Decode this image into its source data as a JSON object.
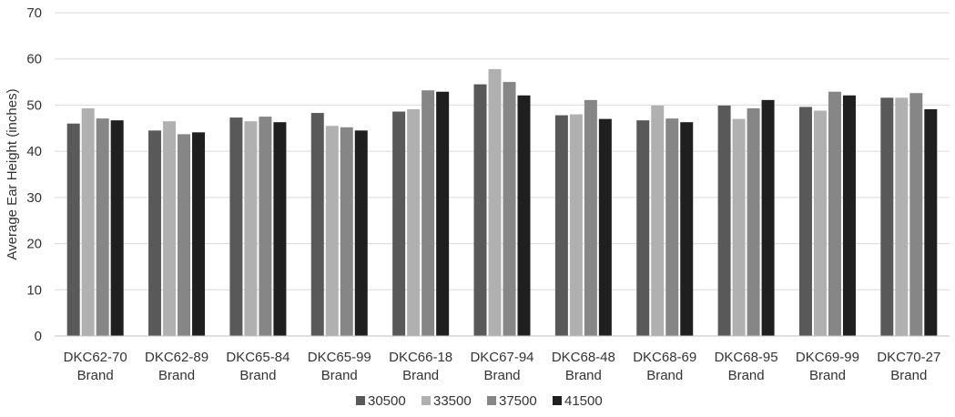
{
  "chart_data": {
    "type": "bar",
    "title": "",
    "xlabel": "",
    "ylabel": "Average Ear Height (inches)",
    "ylim": [
      0,
      70
    ],
    "yticks": [
      0,
      10,
      20,
      30,
      40,
      50,
      60,
      70
    ],
    "grid": true,
    "legend_position": "bottom",
    "categories": [
      [
        "DKC62-70",
        "Brand"
      ],
      [
        "DKC62-89",
        "Brand"
      ],
      [
        "DKC65-84",
        "Brand"
      ],
      [
        "DKC65-99",
        "Brand"
      ],
      [
        "DKC66-18",
        "Brand"
      ],
      [
        "DKC67-94",
        "Brand"
      ],
      [
        "DKC68-48",
        "Brand"
      ],
      [
        "DKC68-69",
        "Brand"
      ],
      [
        "DKC68-95",
        "Brand"
      ],
      [
        "DKC69-99",
        "Brand"
      ],
      [
        "DKC70-27",
        "Brand"
      ]
    ],
    "series": [
      {
        "name": "30500",
        "color": "#595959",
        "values": [
          46.0,
          44.5,
          47.3,
          48.3,
          48.6,
          54.5,
          47.8,
          46.7,
          49.9,
          49.6,
          51.6
        ]
      },
      {
        "name": "33500",
        "color": "#b0b0b0",
        "values": [
          49.3,
          46.5,
          46.5,
          45.5,
          49.1,
          57.8,
          48.0,
          49.9,
          47.0,
          48.8,
          51.6
        ]
      },
      {
        "name": "37500",
        "color": "#868686",
        "values": [
          47.1,
          43.7,
          47.5,
          45.2,
          53.2,
          55.0,
          51.1,
          47.1,
          49.3,
          52.9,
          52.6
        ]
      },
      {
        "name": "41500",
        "color": "#1f1f1f",
        "values": [
          46.7,
          44.1,
          46.3,
          44.5,
          52.9,
          52.1,
          47.0,
          46.3,
          51.1,
          52.1,
          49.1
        ]
      }
    ]
  }
}
